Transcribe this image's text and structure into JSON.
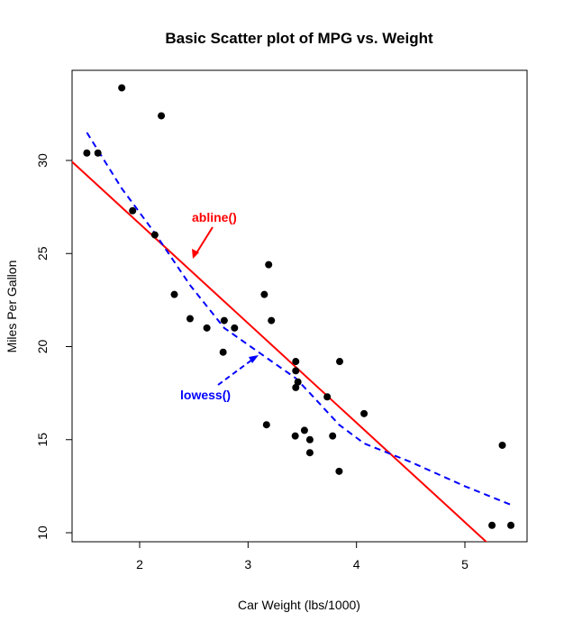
{
  "chart_data": {
    "type": "scatter",
    "title": "Basic Scatter plot of MPG vs. Weight",
    "xlabel": "Car Weight (lbs/1000)",
    "ylabel": "Miles Per Gallon",
    "xlim": [
      1.5,
      5.5
    ],
    "ylim": [
      10,
      35
    ],
    "x_ticks": [
      2,
      3,
      4,
      5
    ],
    "y_ticks": [
      10,
      15,
      20,
      25,
      30
    ],
    "grid": false,
    "points": [
      {
        "x": 1.513,
        "y": 30.4
      },
      {
        "x": 1.615,
        "y": 30.4
      },
      {
        "x": 1.835,
        "y": 33.9
      },
      {
        "x": 1.935,
        "y": 27.3
      },
      {
        "x": 2.14,
        "y": 26.0
      },
      {
        "x": 2.2,
        "y": 32.4
      },
      {
        "x": 2.32,
        "y": 22.8
      },
      {
        "x": 2.465,
        "y": 21.5
      },
      {
        "x": 2.62,
        "y": 21.0
      },
      {
        "x": 2.77,
        "y": 19.7
      },
      {
        "x": 2.78,
        "y": 21.4
      },
      {
        "x": 2.875,
        "y": 21.0
      },
      {
        "x": 3.15,
        "y": 22.8
      },
      {
        "x": 3.17,
        "y": 15.8
      },
      {
        "x": 3.19,
        "y": 24.4
      },
      {
        "x": 3.215,
        "y": 21.4
      },
      {
        "x": 3.435,
        "y": 15.2
      },
      {
        "x": 3.44,
        "y": 18.7
      },
      {
        "x": 3.44,
        "y": 19.2
      },
      {
        "x": 3.44,
        "y": 17.8
      },
      {
        "x": 3.46,
        "y": 18.1
      },
      {
        "x": 3.52,
        "y": 15.5
      },
      {
        "x": 3.57,
        "y": 15.0
      },
      {
        "x": 3.57,
        "y": 14.3
      },
      {
        "x": 3.73,
        "y": 17.3
      },
      {
        "x": 3.78,
        "y": 15.2
      },
      {
        "x": 3.84,
        "y": 13.3
      },
      {
        "x": 3.845,
        "y": 19.2
      },
      {
        "x": 4.07,
        "y": 16.4
      },
      {
        "x": 5.25,
        "y": 10.4
      },
      {
        "x": 5.345,
        "y": 14.7
      },
      {
        "x": 5.424,
        "y": 10.4
      }
    ],
    "abline": {
      "intercept": 37.285,
      "slope": -5.344
    },
    "lowess": [
      {
        "x": 1.513,
        "y": 31.5
      },
      {
        "x": 1.835,
        "y": 28.5
      },
      {
        "x": 2.14,
        "y": 26.1
      },
      {
        "x": 2.465,
        "y": 23.3
      },
      {
        "x": 2.78,
        "y": 21.0
      },
      {
        "x": 3.0,
        "y": 20.1
      },
      {
        "x": 3.17,
        "y": 19.4
      },
      {
        "x": 3.44,
        "y": 18.3
      },
      {
        "x": 3.57,
        "y": 17.5
      },
      {
        "x": 3.84,
        "y": 15.8
      },
      {
        "x": 4.07,
        "y": 14.8
      },
      {
        "x": 4.5,
        "y": 13.8
      },
      {
        "x": 5.0,
        "y": 12.5
      },
      {
        "x": 5.424,
        "y": 11.5
      }
    ],
    "annotations": [
      {
        "label": "abline()",
        "color": "#ff0000"
      },
      {
        "label": "lowess()",
        "color": "#0000ff"
      }
    ],
    "colors": {
      "points": "#000000",
      "abline": "#ff0000",
      "lowess": "#0000ff"
    }
  }
}
